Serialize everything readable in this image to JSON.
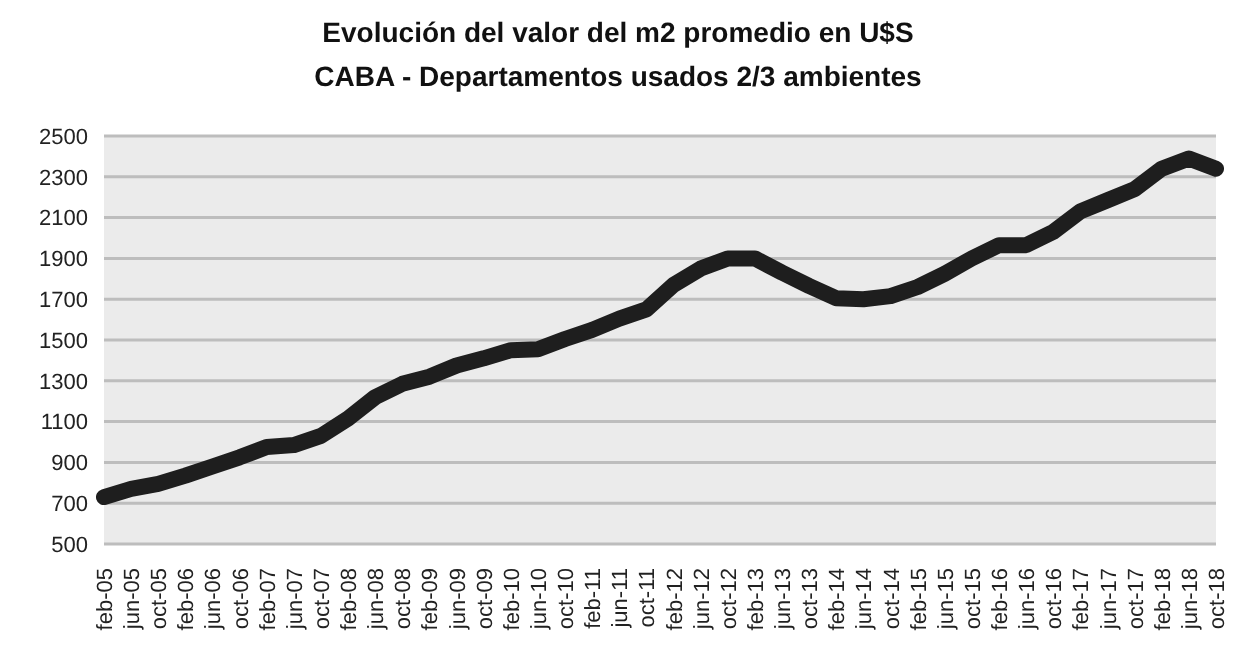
{
  "chart_data": {
    "type": "line",
    "title": "Evolución del valor del m2 promedio en U$S",
    "subtitle": "CABA - Departamentos usados 2/3 ambientes",
    "categories": [
      "feb-05",
      "jun-05",
      "oct-05",
      "feb-06",
      "jun-06",
      "oct-06",
      "feb-07",
      "jun-07",
      "oct-07",
      "feb-08",
      "jun-08",
      "oct-08",
      "feb-09",
      "jun-09",
      "oct-09",
      "feb-10",
      "jun-10",
      "oct-10",
      "feb-11",
      "jun-11",
      "oct-11",
      "feb-12",
      "jun-12",
      "oct-12",
      "feb-13",
      "jun-13",
      "oct-13",
      "feb-14",
      "jun-14",
      "oct-14",
      "feb-15",
      "jun-15",
      "oct-15",
      "feb-16",
      "jun-16",
      "oct-16",
      "feb-17",
      "jun-17",
      "oct-17",
      "feb-18",
      "jun-18",
      "oct-18"
    ],
    "series": [
      {
        "color": "#1e1e1e",
        "values": [
          730,
          770,
          795,
          835,
          880,
          925,
          975,
          985,
          1030,
          1115,
          1220,
          1285,
          1320,
          1375,
          1410,
          1450,
          1455,
          1505,
          1550,
          1605,
          1650,
          1770,
          1850,
          1900,
          1900,
          1830,
          1765,
          1705,
          1700,
          1715,
          1760,
          1825,
          1900,
          1965,
          1965,
          2030,
          2130,
          2185,
          2240,
          2340,
          2390,
          2340
        ]
      }
    ],
    "ylim": [
      500,
      2500
    ],
    "yticks": [
      500,
      700,
      900,
      1100,
      1300,
      1500,
      1700,
      1900,
      2100,
      2300,
      2500
    ],
    "grid": "y",
    "legend": false,
    "marker": "none",
    "line_style": "solid"
  }
}
